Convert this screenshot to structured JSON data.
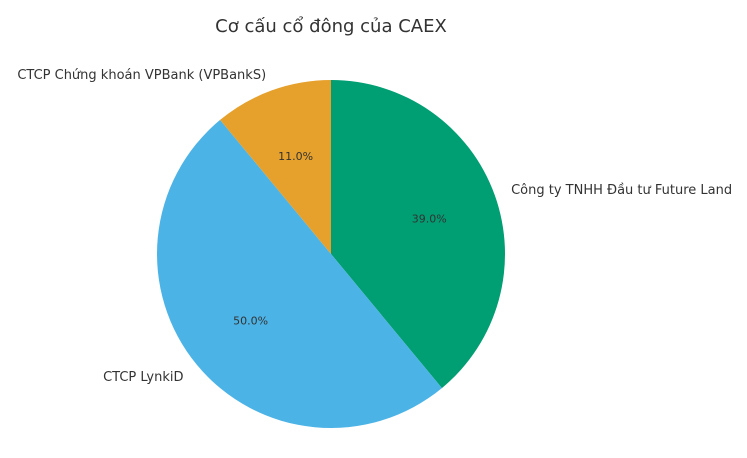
{
  "chart_data": {
    "type": "pie",
    "title": "Cơ cấu cổ đông của CAEX",
    "slices": [
      {
        "label": "Công ty TNHH Đầu tư Future Land",
        "value": 39.0,
        "pct_label": "39.0%",
        "color": "#009E73"
      },
      {
        "label": "CTCP LynkiD",
        "value": 50.0,
        "pct_label": "50.0%",
        "color": "#4CB3E6"
      },
      {
        "label": "CTCP Chứng khoán VPBank (VPBankS)",
        "value": 11.0,
        "pct_label": "11.0%",
        "color": "#E6A02C"
      }
    ],
    "start_angle": "top",
    "direction": "clockwise"
  }
}
